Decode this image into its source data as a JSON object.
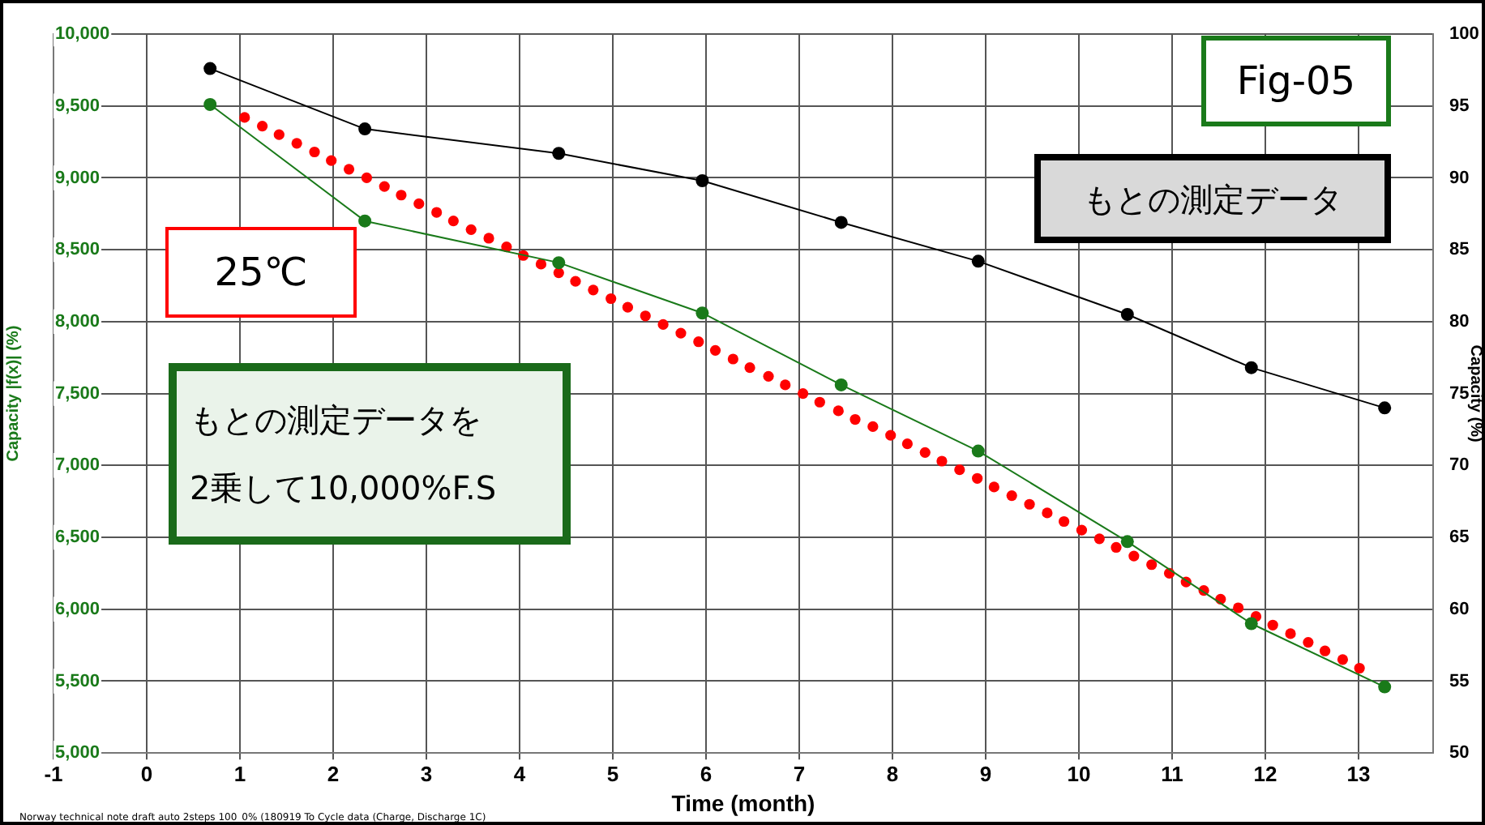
{
  "chart_data": {
    "type": "line",
    "xlabel": "Time (month)",
    "ylabel": "Capacity |f(x)| (%)",
    "y2label": "Capacity (%)",
    "xlim": [
      -1,
      13.8
    ],
    "xticks": [
      -1,
      0,
      1,
      2,
      3,
      4,
      5,
      6,
      7,
      8,
      9,
      10,
      11,
      12,
      13
    ],
    "ylim": [
      5000,
      10000
    ],
    "yticks": [
      {
        "value": 5000,
        "label": "5,000"
      },
      {
        "value": 5500,
        "label": "5,500"
      },
      {
        "value": 6000,
        "label": "6,000"
      },
      {
        "value": 6500,
        "label": "6,500"
      },
      {
        "value": 7000,
        "label": "7,000"
      },
      {
        "value": 7500,
        "label": "7,500"
      },
      {
        "value": 8000,
        "label": "8,000"
      },
      {
        "value": 8500,
        "label": "8,500"
      },
      {
        "value": 9000,
        "label": "9,000"
      },
      {
        "value": 9500,
        "label": "9,500"
      },
      {
        "value": 10000,
        "label": "10,000"
      }
    ],
    "y2lim": [
      50,
      100
    ],
    "y2ticks": [
      50,
      55,
      60,
      65,
      70,
      75,
      80,
      85,
      90,
      95,
      100
    ],
    "grid": true,
    "marker": "circle",
    "line_style": "solid",
    "series": [
      {
        "type": "line",
        "axis": "y2",
        "color": "#000000",
        "x": [
          0.68,
          2.34,
          4.42,
          5.96,
          7.45,
          8.92,
          10.52,
          11.85,
          13.28
        ],
        "values": [
          97.6,
          93.4,
          91.7,
          89.8,
          86.9,
          84.2,
          80.5,
          76.8,
          74.0
        ]
      },
      {
        "type": "line",
        "color": "#1a7a1a",
        "x": [
          0.68,
          2.34,
          4.42,
          5.96,
          7.45,
          8.92,
          10.52,
          11.85,
          13.28
        ],
        "values": [
          9510,
          8700,
          8410,
          8060,
          7560,
          7100,
          6470,
          5900,
          5460
        ]
      },
      {
        "type": "scatter",
        "color": "#ff0000",
        "x": [
          1.05,
          1.24,
          1.42,
          1.61,
          1.8,
          1.98,
          2.17,
          2.36,
          2.55,
          2.73,
          2.92,
          3.11,
          3.29,
          3.48,
          3.67,
          3.86,
          4.04,
          4.23,
          4.42,
          4.6,
          4.79,
          4.98,
          5.16,
          5.35,
          5.54,
          5.73,
          5.92,
          6.1,
          6.29,
          6.47,
          6.67,
          6.85,
          7.04,
          7.22,
          7.42,
          7.6,
          7.79,
          7.98,
          8.16,
          8.35,
          8.53,
          8.72,
          8.91,
          9.09,
          9.28,
          9.47,
          9.66,
          9.84,
          10.03,
          10.22,
          10.4,
          10.59,
          10.78,
          10.97,
          11.15,
          11.34,
          11.52,
          11.71,
          11.9,
          12.08,
          12.27,
          12.46,
          12.64,
          12.83,
          13.01
        ],
        "values": [
          9420,
          9360,
          9300,
          9240,
          9180,
          9120,
          9060,
          9000,
          8940,
          8880,
          8820,
          8760,
          8700,
          8640,
          8580,
          8520,
          8460,
          8400,
          8340,
          8280,
          8220,
          8160,
          8100,
          8040,
          7980,
          7920,
          7860,
          7800,
          7740,
          7680,
          7620,
          7560,
          7500,
          7440,
          7380,
          7320,
          7270,
          7210,
          7150,
          7090,
          7030,
          6970,
          6910,
          6850,
          6790,
          6730,
          6670,
          6610,
          6550,
          6490,
          6430,
          6370,
          6310,
          6250,
          6190,
          6130,
          6070,
          6010,
          5950,
          5890,
          5830,
          5770,
          5710,
          5650,
          5590
        ]
      }
    ],
    "annotations": [
      "Fig-05",
      "もとの測定データ",
      "25℃",
      "もとの測定データを\n2乗して10,000%F.S",
      "Norway technical note draft auto 2steps 100_0% (180919 To Cycle data (Charge, Discharge 1C)"
    ]
  }
}
